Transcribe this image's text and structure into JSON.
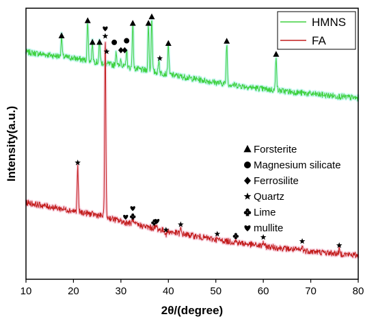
{
  "chart_data": {
    "type": "line",
    "xlabel": "2θ/(degree)",
    "ylabel": "Intensity(a.u.)",
    "xlim": [
      10,
      80
    ],
    "x_ticks": [
      "10",
      "20",
      "30",
      "40",
      "50",
      "60",
      "70",
      "80"
    ],
    "y_ticks_visible": false,
    "grid": false,
    "legend_position": "top-right",
    "series": [
      {
        "name": "HMNS",
        "color": "#3ed13e",
        "baseline": [
          [
            10,
            0.838
          ],
          [
            20,
            0.816
          ],
          [
            30,
            0.786
          ],
          [
            40,
            0.756
          ],
          [
            50,
            0.726
          ],
          [
            60,
            0.702
          ],
          [
            70,
            0.684
          ],
          [
            80,
            0.668
          ]
        ],
        "peaks": [
          [
            17.5,
            0.898
          ],
          [
            23.0,
            0.954
          ],
          [
            24.0,
            0.874
          ],
          [
            25.5,
            0.882
          ],
          [
            29.0,
            0.842
          ],
          [
            30.0,
            0.815
          ],
          [
            31.2,
            0.846
          ],
          [
            32.5,
            0.944
          ],
          [
            35.8,
            0.938
          ],
          [
            36.5,
            0.968
          ],
          [
            38.0,
            0.808
          ],
          [
            40.0,
            0.868
          ],
          [
            52.3,
            0.87
          ],
          [
            62.7,
            0.826
          ]
        ]
      },
      {
        "name": "FA",
        "color": "#c21b1b",
        "baseline": [
          [
            10,
            0.283
          ],
          [
            20,
            0.252
          ],
          [
            26,
            0.234
          ],
          [
            30,
            0.214
          ],
          [
            40,
            0.176
          ],
          [
            50,
            0.146
          ],
          [
            60,
            0.122
          ],
          [
            70,
            0.103
          ],
          [
            80,
            0.088
          ]
        ],
        "peaks": [
          [
            20.9,
            0.415
          ],
          [
            26.7,
            0.885
          ],
          [
            31.0,
            0.209
          ],
          [
            32.5,
            0.222
          ],
          [
            37.0,
            0.192
          ],
          [
            37.5,
            0.198
          ],
          [
            39.5,
            0.164
          ],
          [
            42.6,
            0.184
          ],
          [
            50.3,
            0.149
          ],
          [
            54.2,
            0.143
          ],
          [
            60.0,
            0.138
          ],
          [
            68.2,
            0.121
          ],
          [
            76.0,
            0.108
          ]
        ]
      }
    ],
    "annotations": [
      {
        "x": 17.5,
        "y": 0.898,
        "symbol": "triangle"
      },
      {
        "x": 23.0,
        "y": 0.954,
        "symbol": "triangle"
      },
      {
        "x": 24.0,
        "y": 0.874,
        "symbol": "triangle"
      },
      {
        "x": 25.5,
        "y": 0.874,
        "symbol": "triangle"
      },
      {
        "x": 27.0,
        "y": 0.84,
        "symbol": "star"
      },
      {
        "x": 28.6,
        "y": 0.874,
        "symbol": "circle"
      },
      {
        "x": 30.0,
        "y": 0.845,
        "symbol": "diamond"
      },
      {
        "x": 30.8,
        "y": 0.845,
        "symbol": "diamond"
      },
      {
        "x": 31.2,
        "y": 0.88,
        "symbol": "circle"
      },
      {
        "x": 32.5,
        "y": 0.944,
        "symbol": "triangle"
      },
      {
        "x": 35.8,
        "y": 0.944,
        "symbol": "triangle"
      },
      {
        "x": 36.5,
        "y": 0.968,
        "symbol": "triangle"
      },
      {
        "x": 38.2,
        "y": 0.815,
        "symbol": "star"
      },
      {
        "x": 40.0,
        "y": 0.87,
        "symbol": "triangle"
      },
      {
        "x": 52.3,
        "y": 0.878,
        "symbol": "triangle"
      },
      {
        "x": 62.7,
        "y": 0.83,
        "symbol": "triangle"
      },
      {
        "x": 26.7,
        "y": 0.925,
        "symbol": "heart"
      },
      {
        "x": 26.7,
        "y": 0.897,
        "symbol": "star"
      },
      {
        "x": 20.9,
        "y": 0.43,
        "symbol": "star"
      },
      {
        "x": 31.0,
        "y": 0.23,
        "symbol": "heart"
      },
      {
        "x": 32.5,
        "y": 0.262,
        "symbol": "heart"
      },
      {
        "x": 32.5,
        "y": 0.232,
        "symbol": "club"
      },
      {
        "x": 37.0,
        "y": 0.21,
        "symbol": "club"
      },
      {
        "x": 37.6,
        "y": 0.215,
        "symbol": "heart"
      },
      {
        "x": 39.5,
        "y": 0.182,
        "symbol": "star"
      },
      {
        "x": 42.6,
        "y": 0.202,
        "symbol": "star"
      },
      {
        "x": 50.3,
        "y": 0.167,
        "symbol": "star"
      },
      {
        "x": 54.2,
        "y": 0.16,
        "symbol": "club"
      },
      {
        "x": 60.0,
        "y": 0.155,
        "symbol": "star"
      },
      {
        "x": 68.2,
        "y": 0.14,
        "symbol": "star"
      },
      {
        "x": 76.0,
        "y": 0.125,
        "symbol": "star"
      }
    ],
    "phase_key": [
      {
        "symbol": "triangle",
        "label": "Forsterite"
      },
      {
        "symbol": "circle",
        "label": "Magnesium silicate"
      },
      {
        "symbol": "diamond",
        "label": "Ferrosilite"
      },
      {
        "symbol": "star",
        "label": "Quartz"
      },
      {
        "symbol": "club",
        "label": "Lime"
      },
      {
        "symbol": "heart",
        "label": "mullite"
      }
    ]
  }
}
